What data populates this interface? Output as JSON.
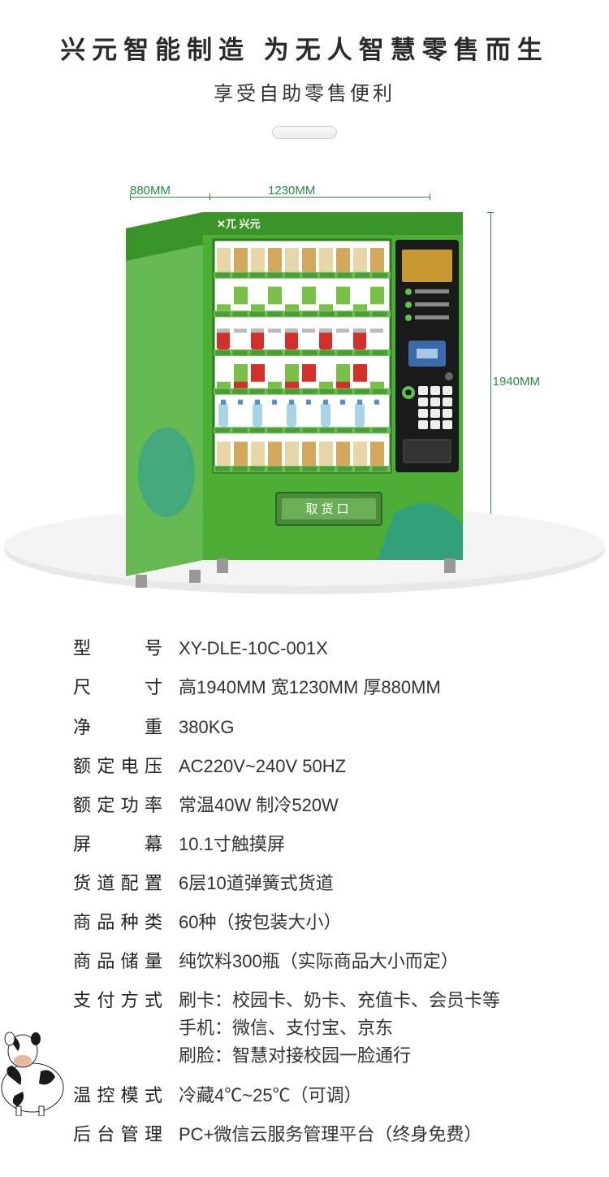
{
  "header": {
    "title_main": "兴元智能制造 为无人智慧零售而生",
    "subtitle": "享受自助零售便利"
  },
  "dimensions": {
    "depth": "880MM",
    "width": "1230MM",
    "height": "1940MM"
  },
  "machine": {
    "brand_logo": "兴元",
    "body_color": "#4cae35",
    "accent_color": "#2196a8",
    "panel_color": "#1a1a1a",
    "window_bg": "#ffffff",
    "shelf_color": "#6bbf4f",
    "pickup_label": "取货口",
    "pickup_bg": "#4a8a3a",
    "shelf_count": 6,
    "columns": 10,
    "product_rows": [
      {
        "type": "snack",
        "colors": [
          "#e8d5a8",
          "#d4a85c"
        ]
      },
      {
        "type": "box",
        "colors": [
          "#ffffff",
          "#7ac047"
        ]
      },
      {
        "type": "can",
        "colors": [
          "#d4302a",
          "#ffffff"
        ]
      },
      {
        "type": "box",
        "colors": [
          "#ffffff",
          "#7ac047",
          "#d4302a"
        ]
      },
      {
        "type": "bottle",
        "colors": [
          "#a8d4e8",
          "#ffffff"
        ]
      },
      {
        "type": "snack",
        "colors": [
          "#e8d5a8",
          "#d4a85c"
        ]
      }
    ]
  },
  "specs": [
    {
      "label": "型号",
      "chars": [
        "型",
        "号"
      ],
      "value": "XY-DLE-10C-001X"
    },
    {
      "label": "尺寸",
      "chars": [
        "尺",
        "寸"
      ],
      "value": "高1940MM 宽1230MM 厚880MM"
    },
    {
      "label": "净重",
      "chars": [
        "净",
        "重"
      ],
      "value": "380KG"
    },
    {
      "label": "额定电压",
      "chars": [
        "额",
        "定",
        "电",
        "压"
      ],
      "value": "AC220V~240V 50HZ"
    },
    {
      "label": "额定功率",
      "chars": [
        "额",
        "定",
        "功",
        "率"
      ],
      "value": "常温40W 制冷520W"
    },
    {
      "label": "屏幕",
      "chars": [
        "屏",
        "幕"
      ],
      "value": "10.1寸触摸屏"
    },
    {
      "label": "货道配置",
      "chars": [
        "货",
        "道",
        "配",
        "置"
      ],
      "value": "6层10道弹簧式货道"
    },
    {
      "label": "商品种类",
      "chars": [
        "商",
        "品",
        "种",
        "类"
      ],
      "value": "60种（按包装大小）"
    },
    {
      "label": "商品储量",
      "chars": [
        "商",
        "品",
        "储",
        "量"
      ],
      "value": "纯饮料300瓶（实际商品大小而定）"
    },
    {
      "label": "支付方式",
      "chars": [
        "支",
        "付",
        "方",
        "式"
      ],
      "value": "刷卡：校园卡、奶卡、充值卡、会员卡等\n手机：微信、支付宝、京东\n刷脸：智慧对接校园一脸通行"
    },
    {
      "label": "温控模式",
      "chars": [
        "温",
        "控",
        "模",
        "式"
      ],
      "value": "冷藏4℃~25℃（可调）"
    },
    {
      "label": "后台管理",
      "chars": [
        "后",
        "台",
        "管",
        "理"
      ],
      "value": "PC+微信云服务管理平台（终身免费）"
    }
  ],
  "colors": {
    "text_primary": "#2a2a2a",
    "dim_green": "#2a8a4a",
    "platform_grey": "#d8d8d8"
  }
}
